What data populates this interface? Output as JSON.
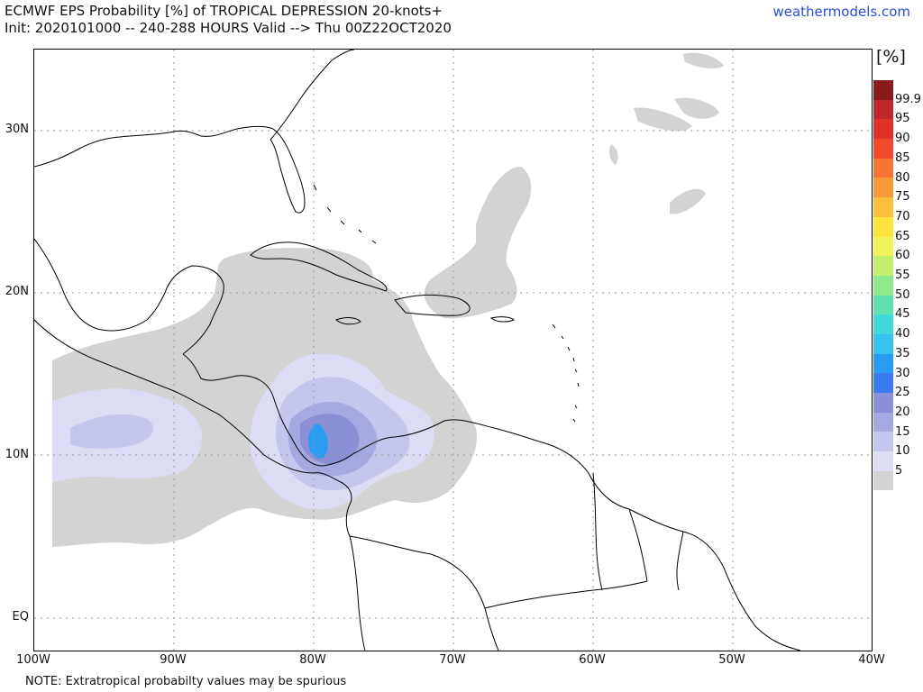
{
  "header": {
    "title_line1": "ECMWF EPS Probability [%] of TROPICAL DEPRESSION 20-knots+",
    "title_line2": "Init: 2020101000 -- 240-288 HOURS Valid --> Thu 00Z22OCT2020",
    "brand": "weathermodels.com"
  },
  "axes": {
    "lat_labels": [
      "30N",
      "20N",
      "10N",
      "EQ"
    ],
    "lon_labels": [
      "100W",
      "90W",
      "80W",
      "70W",
      "60W",
      "50W",
      "40W"
    ]
  },
  "colorbar": {
    "unit": "[%]",
    "levels": [
      "99.9",
      "95",
      "90",
      "85",
      "80",
      "75",
      "70",
      "65",
      "60",
      "55",
      "50",
      "45",
      "40",
      "35",
      "30",
      "25",
      "20",
      "15",
      "10",
      "5"
    ],
    "colors": [
      "#8b1a1a",
      "#c0262c",
      "#e0312a",
      "#f2482a",
      "#f87433",
      "#f99a3a",
      "#fbbf3b",
      "#fde33e",
      "#eef35a",
      "#c4ef6d",
      "#8fe98a",
      "#5fe2b0",
      "#3fd9d9",
      "#36c3ef",
      "#2a9cf1",
      "#3d7cf0",
      "#8a8fd6",
      "#a6a9e0",
      "#c4c6ee",
      "#dcdcf5",
      "#d3d3d3"
    ]
  },
  "note": "NOTE: Extratropical probabilty values may be spurious"
}
